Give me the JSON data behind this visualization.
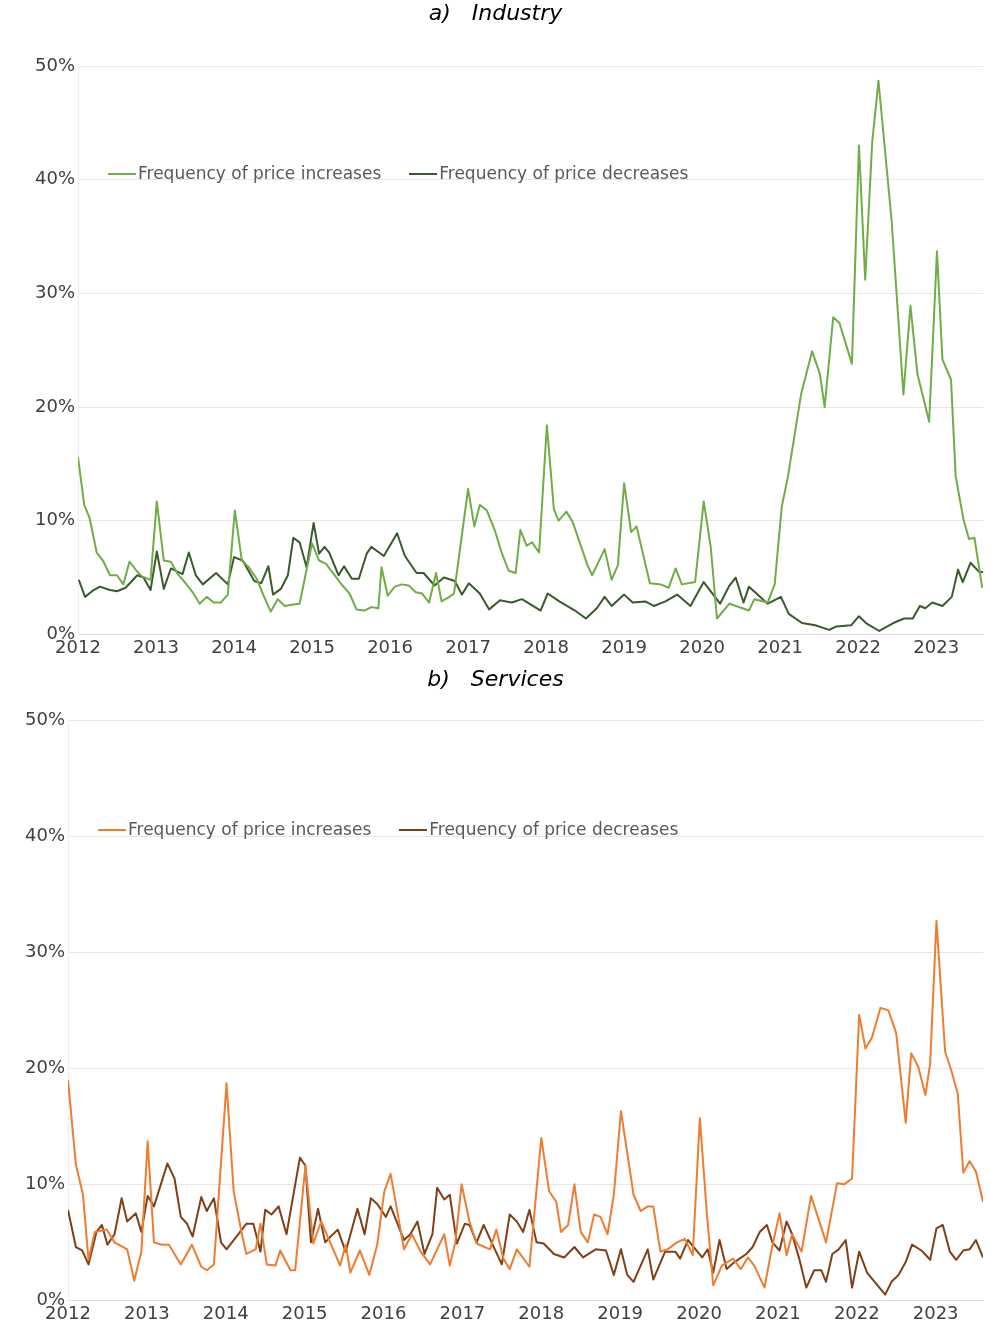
{
  "chart_data": [
    {
      "type": "line",
      "title": "a)   Industry",
      "legend": "top left",
      "grid": "y",
      "marker": "none",
      "line_style": "solid",
      "xlim": [
        2012,
        2023.6
      ],
      "xticks": [
        2012,
        2013,
        2014,
        2015,
        2016,
        2017,
        2018,
        2019,
        2020,
        2021,
        2022,
        2023
      ],
      "ylim": [
        0,
        50
      ],
      "yticks": [
        {
          "value": 0,
          "label": "0%"
        },
        {
          "value": 10,
          "label": "10%"
        },
        {
          "value": 20,
          "label": "20%"
        },
        {
          "value": 30,
          "label": "30%"
        },
        {
          "value": 40,
          "label": "40%"
        },
        {
          "value": 50,
          "label": "50%"
        }
      ],
      "series": [
        {
          "name": "Frequency of price increases",
          "color": "#70ad47",
          "x": [
            2012.0,
            2012.08,
            2012.15,
            2012.24,
            2012.32,
            2012.41,
            2012.5,
            2012.58,
            2012.66,
            2012.75,
            2012.82,
            2012.93,
            2013.01,
            2013.1,
            2013.19,
            2013.28,
            2013.38,
            2013.47,
            2013.56,
            2013.65,
            2013.74,
            2013.83,
            2013.92,
            2014.01,
            2014.1,
            2014.19,
            2014.29,
            2014.38,
            2014.47,
            2014.56,
            2014.65,
            2014.74,
            2014.84,
            2015.0,
            2015.09,
            2015.18,
            2015.29,
            2015.39,
            2015.48,
            2015.57,
            2015.67,
            2015.76,
            2015.85,
            2015.89,
            2015.97,
            2016.06,
            2016.15,
            2016.24,
            2016.33,
            2016.41,
            2016.5,
            2016.59,
            2016.66,
            2016.76,
            2016.82,
            2017.0,
            2017.08,
            2017.15,
            2017.24,
            2017.34,
            2017.43,
            2017.52,
            2017.61,
            2017.67,
            2017.75,
            2017.82,
            2017.91,
            2018.01,
            2018.1,
            2018.16,
            2018.26,
            2018.34,
            2018.53,
            2018.59,
            2018.75,
            2018.84,
            2018.92,
            2019.0,
            2019.09,
            2019.16,
            2019.33,
            2019.47,
            2019.57,
            2019.66,
            2019.74,
            2019.91,
            2020.02,
            2020.11,
            2020.19,
            2020.35,
            2020.6,
            2020.67,
            2020.84,
            2020.93,
            2021.02,
            2021.1,
            2021.27,
            2021.41,
            2021.51,
            2021.57,
            2021.68,
            2021.76,
            2021.92,
            2022.01,
            2022.09,
            2022.18,
            2022.26,
            2022.43,
            2022.58,
            2022.67,
            2022.76,
            2022.91,
            2023.01,
            2023.08,
            2023.19,
            2023.25,
            2023.35,
            2023.42,
            2023.49,
            2023.59
          ],
          "values": [
            15.6,
            11.4,
            10.2,
            7.2,
            6.5,
            5.2,
            5.2,
            4.4,
            6.4,
            5.6,
            5.1,
            4.8,
            11.7,
            6.5,
            6.4,
            5.3,
            4.5,
            3.7,
            2.7,
            3.3,
            2.8,
            2.8,
            3.5,
            10.9,
            6.5,
            5.9,
            4.9,
            3.4,
            2.0,
            3.1,
            2.5,
            2.6,
            2.7,
            8.0,
            6.5,
            6.2,
            5.2,
            4.3,
            3.6,
            2.2,
            2.1,
            2.4,
            2.3,
            5.9,
            3.4,
            4.2,
            4.4,
            4.3,
            3.7,
            3.6,
            2.8,
            5.4,
            2.9,
            3.3,
            3.6,
            12.8,
            9.5,
            11.4,
            10.9,
            9.2,
            7.2,
            5.6,
            5.4,
            9.2,
            7.8,
            8.1,
            7.2,
            18.4,
            11.0,
            10.0,
            10.8,
            9.9,
            6.1,
            5.2,
            7.5,
            4.8,
            6.1,
            13.3,
            9.0,
            9.5,
            4.5,
            4.4,
            4.1,
            5.8,
            4.4,
            4.6,
            11.7,
            7.7,
            1.4,
            2.7,
            2.1,
            3.1,
            2.8,
            4.4,
            11.2,
            13.9,
            21.2,
            24.9,
            22.9,
            20.0,
            27.9,
            27.4,
            23.8,
            43.0,
            31.2,
            43.3,
            48.7,
            36.3,
            21.1,
            28.9,
            22.9,
            18.7,
            33.7,
            24.2,
            22.4,
            13.9,
            10.1,
            8.4,
            8.5,
            4.1
          ]
        },
        {
          "name": "Frequency of price decreases",
          "color": "#3b5a2c",
          "x": [
            2012.01,
            2012.09,
            2012.18,
            2012.28,
            2012.41,
            2012.5,
            2012.61,
            2012.76,
            2012.84,
            2012.93,
            2013.01,
            2013.1,
            2013.19,
            2013.34,
            2013.42,
            2013.51,
            2013.6,
            2013.77,
            2013.92,
            2014.0,
            2014.11,
            2014.26,
            2014.35,
            2014.44,
            2014.5,
            2014.6,
            2014.69,
            2014.76,
            2014.84,
            2014.93,
            2015.02,
            2015.09,
            2015.16,
            2015.22,
            2015.34,
            2015.41,
            2015.51,
            2015.6,
            2015.7,
            2015.76,
            2015.92,
            2016.09,
            2016.19,
            2016.34,
            2016.43,
            2016.57,
            2016.69,
            2016.83,
            2016.92,
            2017.01,
            2017.15,
            2017.27,
            2017.41,
            2017.56,
            2017.69,
            2017.93,
            2018.02,
            2018.17,
            2018.37,
            2018.51,
            2018.65,
            2018.75,
            2018.84,
            2019.0,
            2019.11,
            2019.27,
            2019.38,
            2019.53,
            2019.68,
            2019.85,
            2020.02,
            2020.23,
            2020.35,
            2020.43,
            2020.53,
            2020.6,
            2020.84,
            2021.01,
            2021.11,
            2021.28,
            2021.45,
            2021.63,
            2021.72,
            2021.91,
            2022.01,
            2022.1,
            2022.27,
            2022.45,
            2022.59,
            2022.7,
            2022.79,
            2022.86,
            2022.95,
            2023.08,
            2023.2,
            2023.28,
            2023.34,
            2023.44,
            2023.55,
            2023.6
          ],
          "values": [
            4.8,
            3.3,
            3.8,
            4.2,
            3.9,
            3.8,
            4.1,
            5.2,
            5.0,
            3.9,
            7.3,
            4.0,
            5.8,
            5.3,
            7.2,
            5.2,
            4.4,
            5.4,
            4.4,
            6.8,
            6.5,
            4.7,
            4.5,
            6.0,
            3.5,
            4.0,
            5.2,
            8.5,
            8.1,
            5.9,
            9.8,
            7.1,
            7.7,
            7.2,
            5.2,
            6.0,
            4.9,
            4.9,
            7.1,
            7.7,
            6.9,
            8.9,
            6.9,
            5.4,
            5.4,
            4.3,
            5.0,
            4.7,
            3.5,
            4.5,
            3.6,
            2.2,
            3.0,
            2.8,
            3.1,
            2.1,
            3.6,
            2.9,
            2.1,
            1.4,
            2.3,
            3.3,
            2.5,
            3.5,
            2.8,
            2.9,
            2.5,
            2.9,
            3.5,
            2.5,
            4.6,
            2.7,
            4.3,
            5.0,
            2.8,
            4.2,
            2.7,
            3.3,
            1.8,
            1.0,
            0.8,
            0.4,
            0.7,
            0.8,
            1.6,
            1.0,
            0.3,
            1.0,
            1.4,
            1.4,
            2.5,
            2.3,
            2.8,
            2.5,
            3.3,
            5.7,
            4.6,
            6.3,
            5.5,
            5.5
          ]
        }
      ]
    },
    {
      "type": "line",
      "title": "b)   Services",
      "legend": "top left",
      "grid": "y",
      "marker": "none",
      "line_style": "solid",
      "xlim": [
        2012,
        2023.6
      ],
      "xticks": [
        2012,
        2013,
        2014,
        2015,
        2016,
        2017,
        2018,
        2019,
        2020,
        2021,
        2022,
        2023
      ],
      "ylim": [
        0,
        50
      ],
      "yticks": [
        {
          "value": 0,
          "label": "0%"
        },
        {
          "value": 10,
          "label": "10%"
        },
        {
          "value": 20,
          "label": "20%"
        },
        {
          "value": 30,
          "label": "30%"
        },
        {
          "value": 40,
          "label": "40%"
        },
        {
          "value": 50,
          "label": "50%"
        }
      ],
      "series": [
        {
          "name": "Frequency of price increases",
          "color": "#ed7d31",
          "x": [
            2012.0,
            2012.1,
            2012.19,
            2012.26,
            2012.34,
            2012.49,
            2012.59,
            2012.75,
            2012.84,
            2012.93,
            2013.01,
            2013.09,
            2013.19,
            2013.28,
            2013.43,
            2013.57,
            2013.69,
            2013.76,
            2013.85,
            2014.01,
            2014.1,
            2014.19,
            2014.26,
            2014.38,
            2014.44,
            2014.52,
            2014.63,
            2014.69,
            2014.82,
            2014.88,
            2015.01,
            2015.11,
            2015.21,
            2015.33,
            2015.45,
            2015.52,
            2015.58,
            2015.7,
            2015.82,
            2015.92,
            2016.01,
            2016.09,
            2016.26,
            2016.36,
            2016.47,
            2016.59,
            2016.77,
            2016.84,
            2016.91,
            2016.99,
            2017.09,
            2017.18,
            2017.35,
            2017.43,
            2017.52,
            2017.6,
            2017.69,
            2017.85,
            2018.0,
            2018.1,
            2018.19,
            2018.25,
            2018.34,
            2018.42,
            2018.5,
            2018.59,
            2018.67,
            2018.75,
            2018.84,
            2018.92,
            2019.01,
            2019.17,
            2019.26,
            2019.35,
            2019.42,
            2019.51,
            2019.6,
            2019.72,
            2019.82,
            2019.92,
            2020.01,
            2020.1,
            2020.18,
            2020.29,
            2020.43,
            2020.53,
            2020.62,
            2020.7,
            2020.83,
            2020.92,
            2021.02,
            2021.11,
            2021.18,
            2021.3,
            2021.42,
            2021.61,
            2021.75,
            2021.84,
            2021.94,
            2022.03,
            2022.11,
            2022.19,
            2022.3,
            2022.4,
            2022.5,
            2022.62,
            2022.69,
            2022.78,
            2022.87,
            2022.93,
            2023.01,
            2023.12,
            2023.19,
            2023.28,
            2023.35,
            2023.43,
            2023.51,
            2023.6
          ],
          "values": [
            19.0,
            11.7,
            9.1,
            3.5,
            5.9,
            6.1,
            5.0,
            4.4,
            1.7,
            4.2,
            13.7,
            5.0,
            4.8,
            4.8,
            3.1,
            4.8,
            2.9,
            2.6,
            3.1,
            18.7,
            9.4,
            6.2,
            4.0,
            4.4,
            6.6,
            3.1,
            3.0,
            4.3,
            2.6,
            2.6,
            11.6,
            4.9,
            6.8,
            4.9,
            3.0,
            4.8,
            2.4,
            4.3,
            2.2,
            4.8,
            9.4,
            10.9,
            4.4,
            5.7,
            4.2,
            3.1,
            5.7,
            3.0,
            5.0,
            10.0,
            6.8,
            4.9,
            4.4,
            6.1,
            3.6,
            2.7,
            4.4,
            2.9,
            14.0,
            9.4,
            8.5,
            5.9,
            6.5,
            10.0,
            5.9,
            5.0,
            7.4,
            7.2,
            5.7,
            9.1,
            16.3,
            9.1,
            7.7,
            8.1,
            8.1,
            4.2,
            4.4,
            5.0,
            5.3,
            3.9,
            15.7,
            7.4,
            1.3,
            3.0,
            3.6,
            2.7,
            3.7,
            3.0,
            1.1,
            4.4,
            7.5,
            3.9,
            5.7,
            4.2,
            9.0,
            5.0,
            10.1,
            10.0,
            10.5,
            24.6,
            21.7,
            22.6,
            25.2,
            25.0,
            23.0,
            15.3,
            21.3,
            20.1,
            17.7,
            20.4,
            32.7,
            21.4,
            20.0,
            17.8,
            11.0,
            12.0,
            11.1,
            8.5
          ]
        },
        {
          "name": "Frequency of price decreases",
          "color": "#7f3f17",
          "x": [
            2012.0,
            2012.1,
            2012.18,
            2012.26,
            2012.36,
            2012.43,
            2012.5,
            2012.59,
            2012.68,
            2012.75,
            2012.86,
            2012.93,
            2013.01,
            2013.09,
            2013.26,
            2013.35,
            2013.43,
            2013.51,
            2013.58,
            2013.69,
            2013.76,
            2013.85,
            2013.94,
            2014.01,
            2014.16,
            2014.26,
            2014.35,
            2014.44,
            2014.5,
            2014.58,
            2014.67,
            2014.77,
            2014.94,
            2015.01,
            2015.08,
            2015.17,
            2015.26,
            2015.33,
            2015.42,
            2015.52,
            2015.67,
            2015.76,
            2015.84,
            2015.92,
            2016.03,
            2016.09,
            2016.26,
            2016.34,
            2016.43,
            2016.52,
            2016.62,
            2016.68,
            2016.77,
            2016.84,
            2016.93,
            2017.03,
            2017.09,
            2017.18,
            2017.27,
            2017.37,
            2017.5,
            2017.6,
            2017.69,
            2017.77,
            2017.85,
            2017.94,
            2018.03,
            2018.16,
            2018.29,
            2018.42,
            2018.53,
            2018.69,
            2018.82,
            2018.92,
            2019.01,
            2019.09,
            2019.17,
            2019.35,
            2019.42,
            2019.57,
            2019.7,
            2019.76,
            2019.86,
            2020.04,
            2020.11,
            2020.18,
            2020.26,
            2020.35,
            2020.45,
            2020.6,
            2020.68,
            2020.77,
            2020.86,
            2020.93,
            2021.02,
            2021.11,
            2021.18,
            2021.27,
            2021.36,
            2021.46,
            2021.55,
            2021.61,
            2021.69,
            2021.77,
            2021.86,
            2021.94,
            2022.03,
            2022.13,
            2022.25,
            2022.36,
            2022.44,
            2022.53,
            2022.62,
            2022.7,
            2022.82,
            2022.93,
            2023.01,
            2023.09,
            2023.18,
            2023.26,
            2023.35,
            2023.43,
            2023.51,
            2023.6
          ],
          "values": [
            7.8,
            4.6,
            4.3,
            3.1,
            5.9,
            6.5,
            4.8,
            5.7,
            8.8,
            6.8,
            7.5,
            5.9,
            9.0,
            8.1,
            11.8,
            10.5,
            7.2,
            6.6,
            5.5,
            8.9,
            7.7,
            8.8,
            5.0,
            4.4,
            5.7,
            6.6,
            6.6,
            4.2,
            7.8,
            7.4,
            8.1,
            5.7,
            12.3,
            11.6,
            5.0,
            7.9,
            5.0,
            5.5,
            6.1,
            4.2,
            7.9,
            5.7,
            8.8,
            8.3,
            7.2,
            8.1,
            5.2,
            5.7,
            6.8,
            4.0,
            5.7,
            9.7,
            8.7,
            9.1,
            4.9,
            6.6,
            6.5,
            5.0,
            6.5,
            5.0,
            3.1,
            7.4,
            6.8,
            5.9,
            7.8,
            5.0,
            4.9,
            4.0,
            3.7,
            4.6,
            3.7,
            4.4,
            4.3,
            2.2,
            4.4,
            2.2,
            1.6,
            4.4,
            1.8,
            4.2,
            4.2,
            3.6,
            5.2,
            3.7,
            4.4,
            2.4,
            5.2,
            2.7,
            3.3,
            4.0,
            4.6,
            5.9,
            6.5,
            5.0,
            4.3,
            6.8,
            5.7,
            3.6,
            1.1,
            2.6,
            2.6,
            1.6,
            4.0,
            4.4,
            5.2,
            1.1,
            4.2,
            2.4,
            1.4,
            0.5,
            1.6,
            2.2,
            3.3,
            4.8,
            4.3,
            3.5,
            6.2,
            6.5,
            4.2,
            3.5,
            4.3,
            4.4,
            5.2,
            3.7
          ]
        }
      ]
    }
  ]
}
